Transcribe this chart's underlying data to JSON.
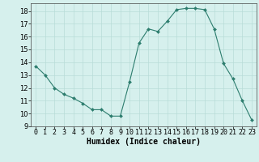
{
  "x": [
    0,
    1,
    2,
    3,
    4,
    5,
    6,
    7,
    8,
    9,
    10,
    11,
    12,
    13,
    14,
    15,
    16,
    17,
    18,
    19,
    20,
    21,
    22,
    23
  ],
  "y": [
    13.7,
    13.0,
    12.0,
    11.5,
    11.2,
    10.8,
    10.3,
    10.3,
    9.8,
    9.8,
    12.5,
    15.5,
    16.6,
    16.4,
    17.2,
    18.1,
    18.2,
    18.2,
    18.1,
    16.6,
    13.9,
    12.7,
    11.0,
    9.5
  ],
  "line_color": "#2d7d6e",
  "marker_color": "#2d7d6e",
  "bg_color": "#d6f0ed",
  "grid_color": "#b8dcd8",
  "xlabel": "Humidex (Indice chaleur)",
  "ylabel_ticks": [
    9,
    10,
    11,
    12,
    13,
    14,
    15,
    16,
    17,
    18
  ],
  "xlim": [
    -0.5,
    23.5
  ],
  "ylim": [
    9,
    18.6
  ],
  "label_fontsize": 7,
  "tick_fontsize": 6
}
